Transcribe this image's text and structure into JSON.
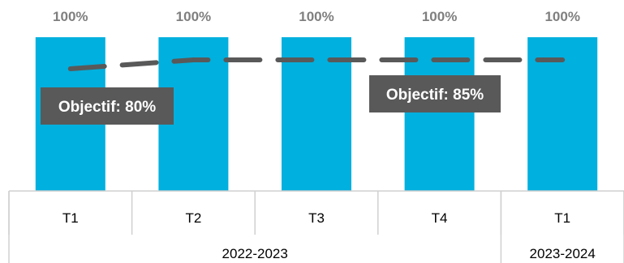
{
  "chart_data": {
    "type": "bar",
    "categories": [
      "T1",
      "T2",
      "T3",
      "T4",
      "T1"
    ],
    "groups": [
      {
        "label": "2022-2023",
        "span": 4
      },
      {
        "label": "2023-2024",
        "span": 1
      }
    ],
    "values": [
      100,
      100,
      100,
      100,
      100
    ],
    "value_labels": [
      "100%",
      "100%",
      "100%",
      "100%",
      "100%"
    ],
    "target_line": [
      80,
      85,
      85,
      85,
      85
    ],
    "annotations": [
      {
        "text": "Objectif: 80%",
        "category_index": 0
      },
      {
        "text": "Objectif: 85%",
        "category_index": 3
      }
    ],
    "ylim": [
      0,
      100
    ],
    "grid": false,
    "colors": {
      "bar": "#00b0de",
      "target_line": "#595959",
      "annotation_bg": "#595959",
      "axis": "#d0d0d0"
    }
  }
}
